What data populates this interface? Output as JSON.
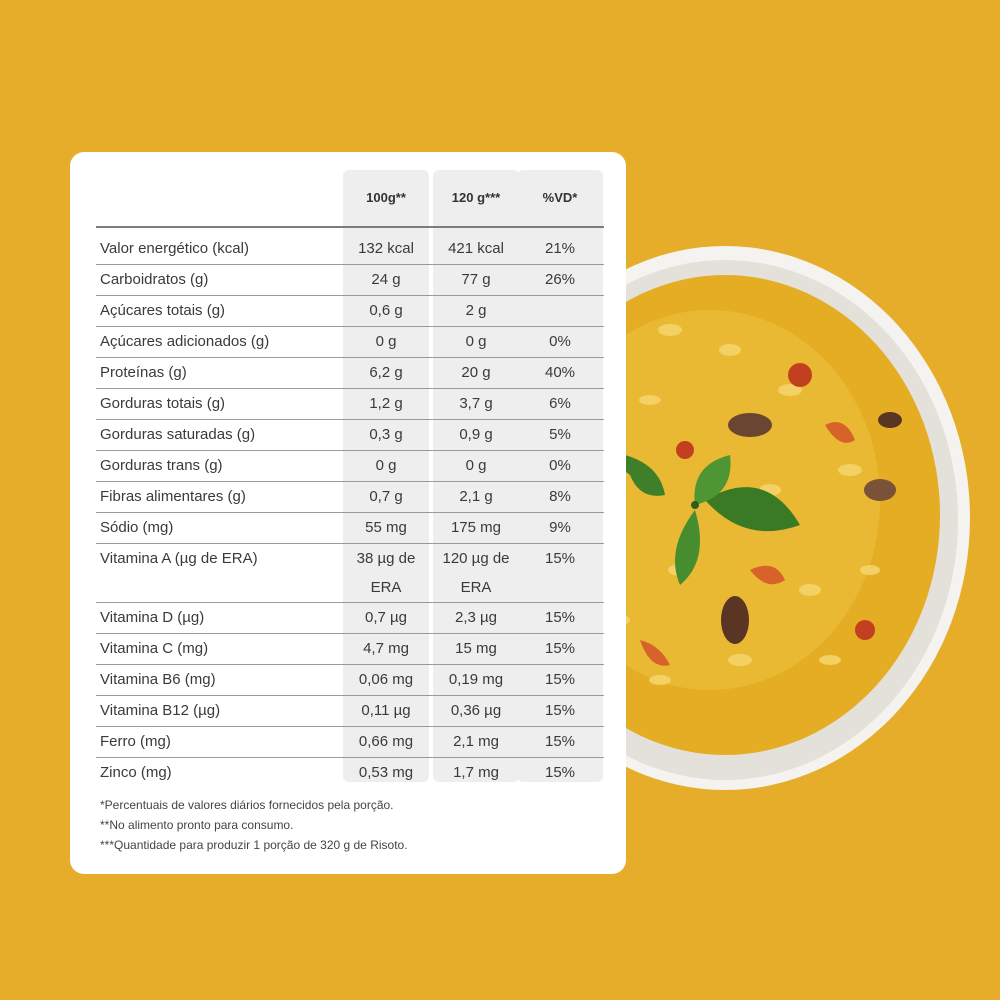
{
  "table": {
    "headers": [
      "100g**",
      "120 g***",
      "%VD*"
    ],
    "rows": [
      {
        "name": "Valor energético (kcal)",
        "v100": "132 kcal",
        "v120": "421 kcal",
        "vd": "21%"
      },
      {
        "name": "Carboidratos (g)",
        "v100": "24 g",
        "v120": "77 g",
        "vd": "26%"
      },
      {
        "name": "Açúcares totais (g)",
        "v100": "0,6 g",
        "v120": "2 g",
        "vd": ""
      },
      {
        "name": "Açúcares adicionados (g)",
        "v100": "0 g",
        "v120": "0 g",
        "vd": "0%"
      },
      {
        "name": "Proteínas (g)",
        "v100": "6,2 g",
        "v120": "20 g",
        "vd": "40%"
      },
      {
        "name": "Gorduras totais (g)",
        "v100": "1,2 g",
        "v120": "3,7 g",
        "vd": "6%"
      },
      {
        "name": "Gorduras saturadas (g)",
        "v100": "0,3 g",
        "v120": "0,9 g",
        "vd": "5%"
      },
      {
        "name": "Gorduras trans (g)",
        "v100": "0 g",
        "v120": "0 g",
        "vd": "0%"
      },
      {
        "name": "Fibras alimentares (g)",
        "v100": "0,7 g",
        "v120": "2,1 g",
        "vd": "8%"
      },
      {
        "name": "Sódio (mg)",
        "v100": "55 mg",
        "v120": "175 mg",
        "vd": "9%"
      },
      {
        "name": "Vitamina A (µg de ERA)",
        "v100": "38 µg de ERA",
        "v120": "120 µg de ERA",
        "vd": "15%"
      },
      {
        "name": "Vitamina D (µg)",
        "v100": "0,7 µg",
        "v120": "2,3 µg",
        "vd": "15%"
      },
      {
        "name": "Vitamina C (mg)",
        "v100": "4,7 mg",
        "v120": "15 mg",
        "vd": "15%"
      },
      {
        "name": "Vitamina B6 (mg)",
        "v100": "0,06 mg",
        "v120": "0,19 mg",
        "vd": "15%"
      },
      {
        "name": "Vitamina B12 (µg)",
        "v100": "0,11 µg",
        "v120": "0,36 µg",
        "vd": "15%"
      },
      {
        "name": "Ferro (mg)",
        "v100": "0,66 mg",
        "v120": "2,1 mg",
        "vd": "15%"
      },
      {
        "name": "Zinco (mg)",
        "v100": "0,53 mg",
        "v120": "1,7 mg",
        "vd": "15%"
      }
    ]
  },
  "footnotes": [
    "*Percentuais de valores diários fornecidos pela porção.",
    "**No alimento pronto para consumo.",
    "***Quantidade para produzir 1 porção de 320 g de Risoto."
  ],
  "colors": {
    "background": "#e6ad2b",
    "card": "#ffffff",
    "column_shade": "#eeeeee",
    "bowl": "#f5f4f0",
    "risotto": "#e9b52a"
  }
}
